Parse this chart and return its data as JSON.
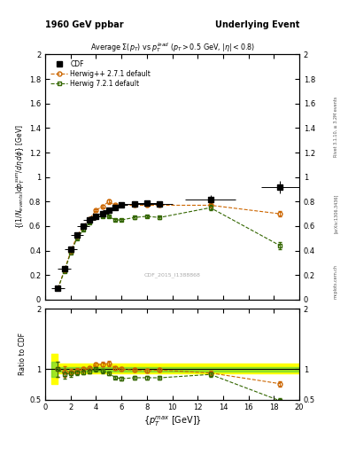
{
  "title_left": "1960 GeV ppbar",
  "title_right": "Underlying Event",
  "plot_title": "Average $\\Sigma(p_T)$ vs $p_T^{lead}$ ($p_T > 0.5$ GeV, $|\\eta| < 0.8$)",
  "watermark": "CDF_2015_I1388868",
  "ylabel_main": "$\\{(1/N_{events}) dp_T^{sum}/d\\eta\\, d\\phi\\}$ [GeV]",
  "ylabel_ratio": "Ratio to CDF",
  "xlabel": "$\\{p_T^{max}$ [GeV]$\\}$",
  "right_label": "Rivet 3.1.10, ≥ 3.2M events",
  "arxiv_label": "[arXiv:1306.3436]",
  "mcplots_label": "mcplots.cern.ch",
  "cdf_x": [
    1.0,
    1.5,
    2.0,
    2.5,
    3.0,
    3.5,
    4.0,
    4.5,
    5.0,
    5.5,
    6.0,
    7.0,
    8.0,
    9.0,
    13.0,
    18.5
  ],
  "cdf_y": [
    0.09,
    0.25,
    0.41,
    0.53,
    0.6,
    0.65,
    0.68,
    0.7,
    0.73,
    0.75,
    0.77,
    0.78,
    0.79,
    0.78,
    0.82,
    0.92
  ],
  "cdf_yerr": [
    0.01,
    0.02,
    0.02,
    0.02,
    0.02,
    0.02,
    0.02,
    0.02,
    0.02,
    0.02,
    0.02,
    0.02,
    0.02,
    0.02,
    0.03,
    0.05
  ],
  "cdf_xerr": [
    0.5,
    0.5,
    0.5,
    0.5,
    0.5,
    0.5,
    0.5,
    0.5,
    0.5,
    0.5,
    0.5,
    1.0,
    1.0,
    1.0,
    2.0,
    1.5
  ],
  "hpp_x": [
    1.0,
    1.5,
    2.0,
    2.5,
    3.0,
    3.5,
    4.0,
    4.5,
    5.0,
    5.5,
    6.0,
    7.0,
    8.0,
    9.0,
    13.0,
    18.5
  ],
  "hpp_y": [
    0.09,
    0.24,
    0.39,
    0.52,
    0.6,
    0.66,
    0.73,
    0.76,
    0.8,
    0.77,
    0.77,
    0.77,
    0.77,
    0.77,
    0.77,
    0.7
  ],
  "hpp_yerr": [
    0.005,
    0.008,
    0.008,
    0.008,
    0.008,
    0.008,
    0.01,
    0.01,
    0.02,
    0.01,
    0.01,
    0.01,
    0.01,
    0.01,
    0.01,
    0.02
  ],
  "h721_x": [
    1.0,
    1.5,
    2.0,
    2.5,
    3.0,
    3.5,
    4.0,
    4.5,
    5.0,
    5.5,
    6.0,
    7.0,
    8.0,
    9.0,
    13.0,
    18.5
  ],
  "h721_y": [
    0.09,
    0.23,
    0.38,
    0.5,
    0.57,
    0.63,
    0.68,
    0.68,
    0.68,
    0.65,
    0.65,
    0.67,
    0.68,
    0.67,
    0.75,
    0.44
  ],
  "h721_yerr": [
    0.005,
    0.008,
    0.008,
    0.008,
    0.008,
    0.008,
    0.01,
    0.01,
    0.01,
    0.01,
    0.01,
    0.01,
    0.01,
    0.01,
    0.02,
    0.03
  ],
  "ylim_main": [
    0,
    2
  ],
  "ylim_ratio": [
    0.5,
    2
  ],
  "xlim": [
    0,
    20
  ],
  "cdf_color": "black",
  "hpp_color": "#cc6600",
  "h721_color": "#336600",
  "band_yellow": "#ffff00",
  "band_green": "#44cc44"
}
